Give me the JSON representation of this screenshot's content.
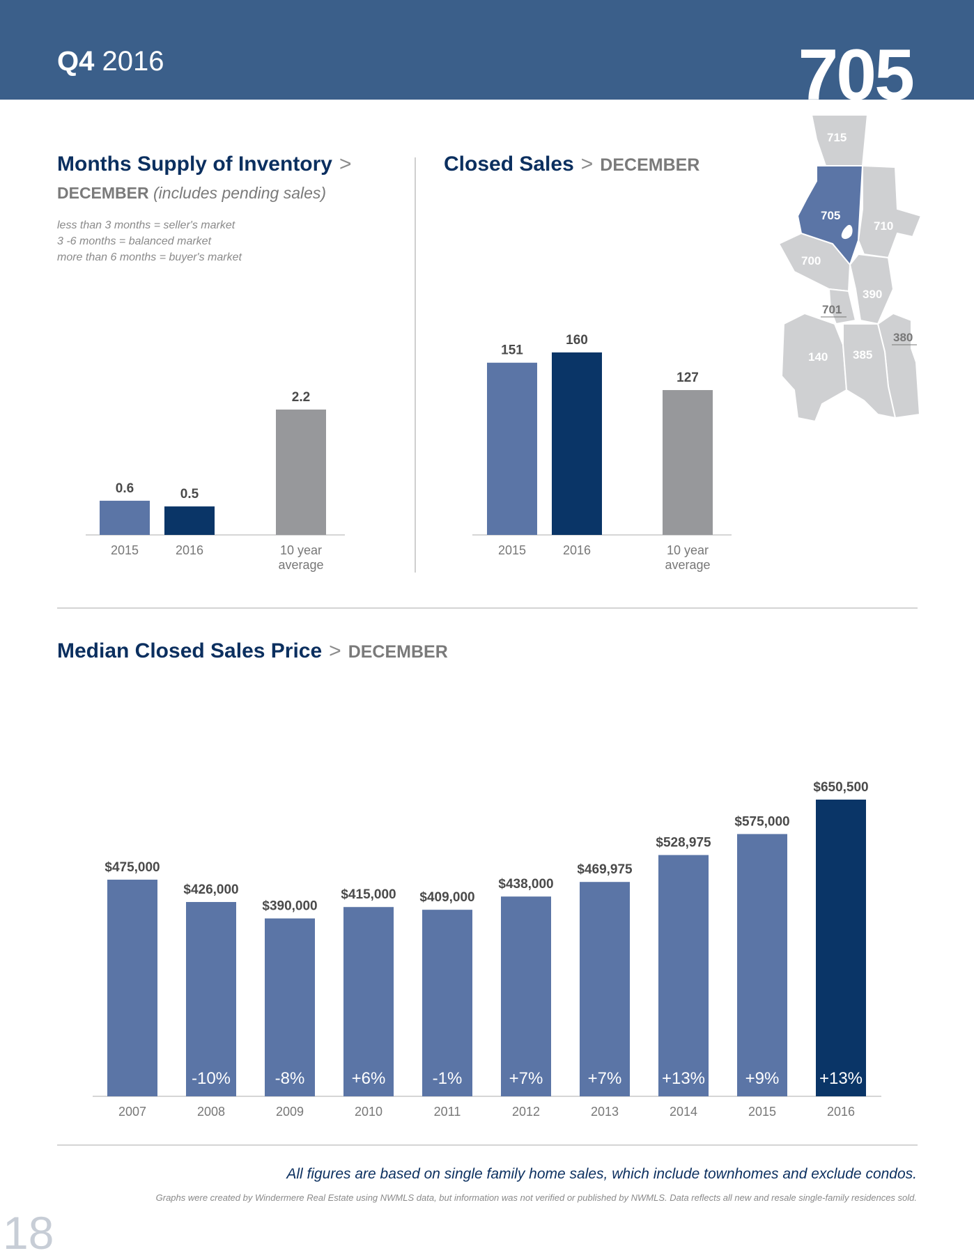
{
  "header": {
    "quarter": "Q4",
    "year": "2016",
    "area": "705"
  },
  "colors": {
    "header_bg": "#3b5f8a",
    "bar_light": "#5b75a6",
    "bar_dark": "#0a3567",
    "bar_grey": "#97989b",
    "map_grey": "#cfd0d2",
    "map_highlight": "#5b75a6"
  },
  "map": {
    "zones": [
      "715",
      "705",
      "710",
      "700",
      "390",
      "701",
      "380",
      "140",
      "385"
    ],
    "icon": "seattle-map-icon"
  },
  "inventory": {
    "title": "Months Supply of Inventory",
    "separator": ">",
    "month": "DECEMBER",
    "note": "(includes pending sales)",
    "legend": [
      "less than 3 months = seller's market",
      "3 -6 months = balanced market",
      "more than 6 months = buyer's market"
    ]
  },
  "closed_sales": {
    "title": "Closed Sales",
    "separator": ">",
    "month": "DECEMBER"
  },
  "median_price": {
    "title": "Median Closed Sales Price",
    "separator": ">",
    "month": "DECEMBER"
  },
  "chart_data": [
    {
      "type": "bar",
      "title": "Months Supply of Inventory",
      "categories": [
        "2015",
        "2016",
        "10 year average"
      ],
      "values": [
        0.6,
        0.5,
        2.2
      ],
      "value_labels": [
        "0.6",
        "0.5",
        "2.2"
      ],
      "bar_colors": [
        "#5b75a6",
        "#0a3567",
        "#97989b"
      ],
      "ylim": [
        0,
        2.2
      ]
    },
    {
      "type": "bar",
      "title": "Closed Sales",
      "categories": [
        "2015",
        "2016",
        "10 year average"
      ],
      "values": [
        151,
        160,
        127
      ],
      "value_labels": [
        "151",
        "160",
        "127"
      ],
      "bar_colors": [
        "#5b75a6",
        "#0a3567",
        "#97989b"
      ],
      "ylim": [
        0,
        160
      ]
    },
    {
      "type": "bar",
      "title": "Median Closed Sales Price",
      "categories": [
        "2007",
        "2008",
        "2009",
        "2010",
        "2011",
        "2012",
        "2013",
        "2014",
        "2015",
        "2016"
      ],
      "values": [
        475000,
        426000,
        390000,
        415000,
        409000,
        438000,
        469975,
        528975,
        575000,
        650500
      ],
      "value_labels": [
        "$475,000",
        "$426,000",
        "$390,000",
        "$415,000",
        "$409,000",
        "$438,000",
        "$469,975",
        "$528,975",
        "$575,000",
        "$650,500"
      ],
      "change_labels": [
        "",
        "-10%",
        "-8%",
        "+6%",
        "-1%",
        "+7%",
        "+7%",
        "+13%",
        "+9%",
        "+13%"
      ],
      "bar_colors": [
        "#5b75a6",
        "#5b75a6",
        "#5b75a6",
        "#5b75a6",
        "#5b75a6",
        "#5b75a6",
        "#5b75a6",
        "#5b75a6",
        "#5b75a6",
        "#0a3567"
      ],
      "ylim": [
        0,
        650500
      ]
    }
  ],
  "footer": {
    "main": "All figures are based on single family home sales, which include townhomes and exclude condos.",
    "note": "Graphs were created by Windermere Real Estate using NWMLS data, but information was not verified or published by NWMLS. Data reflects all new and resale single-family residences sold.",
    "page": "18"
  }
}
